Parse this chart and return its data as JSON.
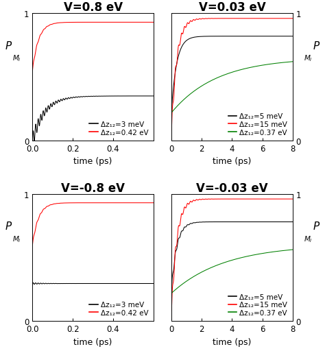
{
  "panels": [
    {
      "title": "V=0.8 eV",
      "xlim": [
        0,
        0.6
      ],
      "xticks": [
        0,
        0.2,
        0.4
      ],
      "xlabel": "time (ps)",
      "ylim": [
        0,
        1
      ],
      "yticks": [
        0,
        1
      ],
      "ylabel_left": true,
      "legend_loc": "lower right",
      "curves": [
        {
          "label": "Δz₁₂=3 meV",
          "color": "black",
          "y_start": 0.0,
          "y_end": 0.35,
          "rise_tau": 0.06,
          "osc_amp": 0.06,
          "osc_freq": 80,
          "osc_decay": 0.07
        },
        {
          "label": "Δz₁₂=0.42 eV",
          "color": "red",
          "y_start": 0.55,
          "y_end": 0.93,
          "rise_tau": 0.03,
          "osc_amp": 0.012,
          "osc_freq": 60,
          "osc_decay": 0.04
        }
      ]
    },
    {
      "title": "V=0.03 eV",
      "xlim": [
        0,
        8
      ],
      "xticks": [
        0,
        2,
        4,
        6,
        8
      ],
      "xlabel": "time (ps)",
      "ylim": [
        0,
        1
      ],
      "yticks": [
        0,
        1
      ],
      "ylabel_left": false,
      "legend_loc": "lower right",
      "curves": [
        {
          "label": "Δz₁₂=5 meV",
          "color": "black",
          "y_start": 0.25,
          "y_end": 0.82,
          "rise_tau": 0.35,
          "osc_amp": 0.0,
          "osc_freq": 0,
          "osc_decay": 1
        },
        {
          "label": "Δz₁₂=15 meV",
          "color": "red",
          "y_start": 0.08,
          "y_end": 0.96,
          "rise_tau": 0.35,
          "osc_amp": 0.055,
          "osc_freq": 5,
          "osc_decay": 0.6
        },
        {
          "label": "Δz₁₂=0.37 eV",
          "color": "green",
          "y_start": 0.22,
          "y_end": 0.65,
          "rise_tau": 3.0,
          "osc_amp": 0.0,
          "osc_freq": 0,
          "osc_decay": 1
        }
      ]
    },
    {
      "title": "V=-0.8 eV",
      "xlim": [
        0,
        0.6
      ],
      "xticks": [
        0,
        0.2,
        0.4
      ],
      "xlabel": "time (ps)",
      "ylim": [
        0,
        1
      ],
      "yticks": [
        0,
        1
      ],
      "ylabel_left": true,
      "legend_loc": "lower right",
      "curves": [
        {
          "label": "Δz₁₂=3 meV",
          "color": "black",
          "y_start": 0.28,
          "y_end": 0.295,
          "rise_tau": 0.001,
          "osc_amp": 0.007,
          "osc_freq": 80,
          "osc_decay": 0.05
        },
        {
          "label": "Δz₁₂=0.42 eV",
          "color": "red",
          "y_start": 0.6,
          "y_end": 0.93,
          "rise_tau": 0.03,
          "osc_amp": 0.012,
          "osc_freq": 60,
          "osc_decay": 0.04
        }
      ]
    },
    {
      "title": "V=-0.03 eV",
      "xlim": [
        0,
        8
      ],
      "xticks": [
        0,
        2,
        4,
        6,
        8
      ],
      "xlabel": "time (ps)",
      "ylim": [
        0,
        1
      ],
      "yticks": [
        0,
        1
      ],
      "ylabel_left": false,
      "legend_loc": "lower right",
      "curves": [
        {
          "label": "Δz₁₂=5 meV",
          "color": "black",
          "y_start": 0.25,
          "y_end": 0.78,
          "rise_tau": 0.35,
          "osc_amp": 0.03,
          "osc_freq": 5,
          "osc_decay": 0.5
        },
        {
          "label": "Δz₁₂=15 meV",
          "color": "red",
          "y_start": 0.08,
          "y_end": 0.96,
          "rise_tau": 0.35,
          "osc_amp": 0.055,
          "osc_freq": 5,
          "osc_decay": 0.6
        },
        {
          "label": "Δz₁₂=0.37 eV",
          "color": "green",
          "y_start": 0.22,
          "y_end": 0.6,
          "rise_tau": 3.5,
          "osc_amp": 0.0,
          "osc_freq": 0,
          "osc_decay": 1
        }
      ]
    }
  ],
  "title_fontsize": 12,
  "label_fontsize": 9,
  "legend_fontsize": 7.5,
  "tick_fontsize": 8.5
}
